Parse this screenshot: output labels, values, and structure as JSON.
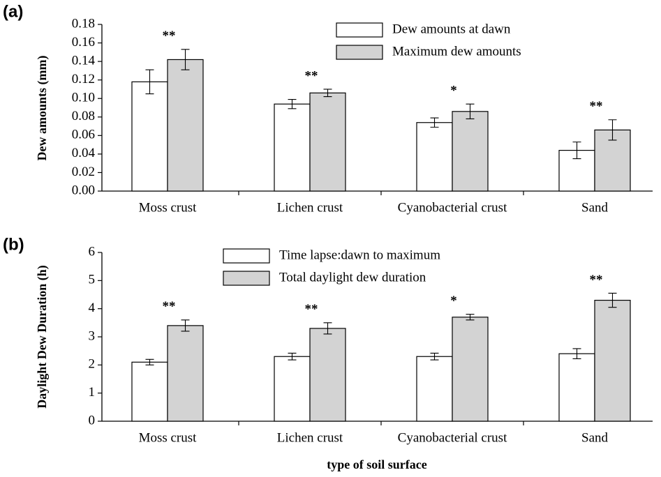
{
  "chart_data": [
    {
      "type": "bar",
      "panel_label": "(a)",
      "ylabel": "Dew amounts (mm)",
      "categories": [
        "Moss crust",
        "Lichen crust",
        "Cyanobacterial crust",
        "Sand"
      ],
      "series": [
        {
          "name": "Dew amounts at dawn",
          "color": "#ffffff",
          "values": [
            0.118,
            0.094,
            0.074,
            0.044
          ],
          "errors": [
            0.013,
            0.005,
            0.005,
            0.009
          ]
        },
        {
          "name": "Maximum dew amounts",
          "color": "#d3d3d3",
          "values": [
            0.142,
            0.106,
            0.086,
            0.066
          ],
          "errors": [
            0.011,
            0.004,
            0.008,
            0.011
          ]
        }
      ],
      "significance": [
        "**",
        "**",
        "*",
        "**"
      ],
      "ylim": [
        0,
        0.18
      ],
      "yticks": [
        {
          "value": 0,
          "label": "0.00"
        },
        {
          "value": 0.02,
          "label": "0.02"
        },
        {
          "value": 0.04,
          "label": "0.04"
        },
        {
          "value": 0.06,
          "label": "0.06"
        },
        {
          "value": 0.08,
          "label": "0.08"
        },
        {
          "value": 0.1,
          "label": "0.10"
        },
        {
          "value": 0.12,
          "label": "0.12"
        },
        {
          "value": 0.14,
          "label": "0.14"
        },
        {
          "value": 0.16,
          "label": "0.16"
        },
        {
          "value": 0.18,
          "label": "0.18"
        }
      ]
    },
    {
      "type": "bar",
      "panel_label": "(b)",
      "ylabel": "Daylight Dew Duration (h)",
      "xlabel": "type of soil surface",
      "categories": [
        "Moss crust",
        "Lichen crust",
        "Cyanobacterial crust",
        "Sand"
      ],
      "series": [
        {
          "name": "Time lapse:dawn to maximum",
          "color": "#ffffff",
          "values": [
            2.1,
            2.3,
            2.3,
            2.4
          ],
          "errors": [
            0.1,
            0.12,
            0.12,
            0.18
          ]
        },
        {
          "name": "Total daylight dew duration",
          "color": "#d3d3d3",
          "values": [
            3.4,
            3.3,
            3.7,
            4.3
          ],
          "errors": [
            0.2,
            0.2,
            0.1,
            0.25
          ]
        }
      ],
      "significance": [
        "**",
        "**",
        "*",
        "**"
      ],
      "ylim": [
        0,
        6
      ],
      "yticks": [
        0,
        1,
        2,
        3,
        4,
        5,
        6
      ]
    }
  ]
}
